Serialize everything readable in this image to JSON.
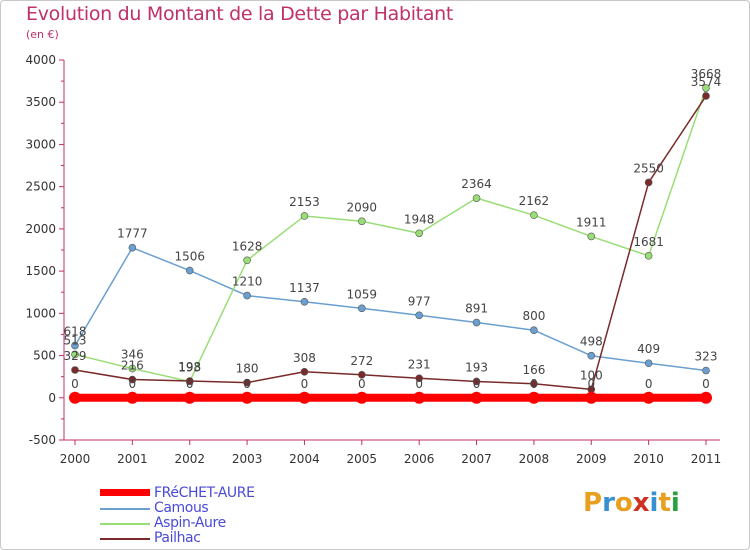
{
  "header": {
    "title": "Evolution du Montant de la Dette par Habitant",
    "subtitle": "(en €)"
  },
  "logo": {
    "text": "Proxiti",
    "colors": [
      "#e8a020",
      "#3a8fd0",
      "#e8a020",
      "#d03020",
      "#3a8fd0",
      "#e8a020",
      "#2aa040"
    ]
  },
  "chart_data": {
    "type": "line",
    "x": [
      "2000",
      "2001",
      "2002",
      "2003",
      "2004",
      "2005",
      "2006",
      "2007",
      "2008",
      "2009",
      "2010",
      "2011"
    ],
    "ylim": [
      -500,
      4000
    ],
    "yticks": [
      "4000",
      "3500",
      "3000",
      "2500",
      "2000",
      "1500",
      "1000",
      "500",
      "0",
      "-500"
    ],
    "ytick_values": [
      4000,
      3500,
      3000,
      2500,
      2000,
      1500,
      1000,
      500,
      0,
      -500
    ],
    "grid": false,
    "legend_position": "bottom-left",
    "series": [
      {
        "name": "FRéCHET-AURE",
        "color": "#ff0000",
        "values": [
          0,
          0,
          0,
          0,
          0,
          0,
          0,
          0,
          0,
          0,
          0,
          0
        ],
        "labels": [
          "0",
          "0",
          "0",
          "0",
          "0",
          "0",
          "0",
          "0",
          "0",
          "0",
          "0",
          "0"
        ]
      },
      {
        "name": "Camous",
        "color": "#6a9fd0",
        "values": [
          618,
          1777,
          1506,
          1210,
          1137,
          1059,
          977,
          891,
          800,
          498,
          409,
          323
        ],
        "labels": [
          "618",
          "1777",
          "1506",
          "1210",
          "1137",
          "1059",
          "977",
          "891",
          "800",
          "498",
          "409",
          "323"
        ]
      },
      {
        "name": "Aspin-Aure",
        "color": "#99dd77",
        "values": [
          513,
          346,
          193,
          1628,
          2153,
          2090,
          1948,
          2364,
          2162,
          1911,
          1681,
          3668
        ],
        "labels": [
          "513",
          "346",
          "193",
          "1628",
          "2153",
          "2090",
          "1948",
          "2364",
          "2162",
          "1911",
          "1681",
          "3668"
        ]
      },
      {
        "name": "Pailhac",
        "color": "#7a2a2a",
        "values": [
          329,
          216,
          198,
          180,
          308,
          272,
          231,
          193,
          166,
          100,
          2550,
          3574
        ],
        "labels": [
          "329",
          "216",
          "198",
          "180",
          "308",
          "272",
          "231",
          "193",
          "166",
          "100",
          "2550",
          "3574"
        ]
      }
    ]
  }
}
